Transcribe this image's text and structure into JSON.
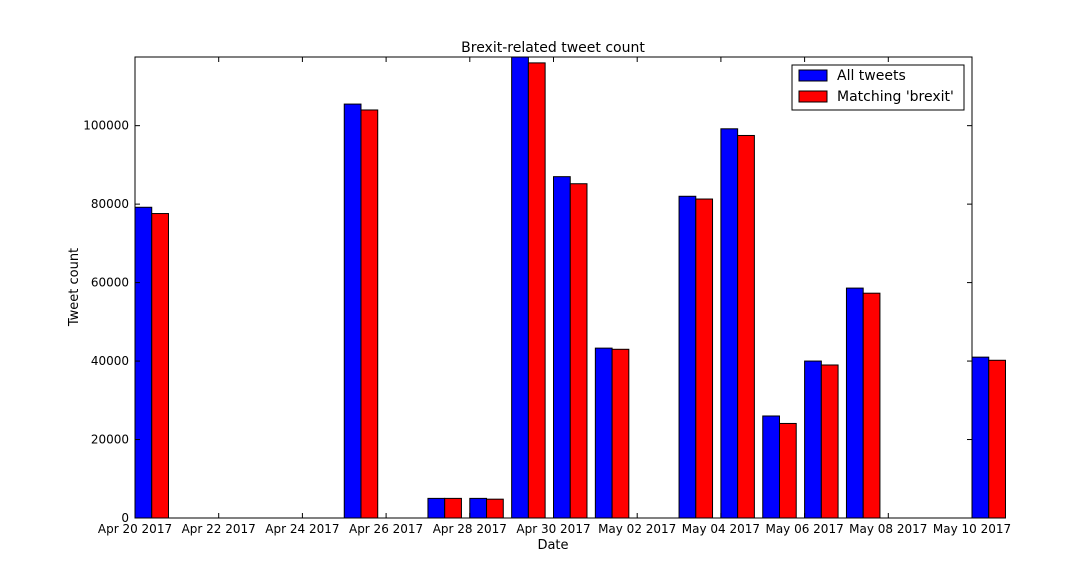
{
  "chart_data": {
    "type": "bar",
    "title": "Brexit-related tweet count",
    "xlabel": "Date",
    "ylabel": "Tweet count",
    "ylim": [
      0,
      117500
    ],
    "yticks": [
      0,
      20000,
      40000,
      60000,
      80000,
      100000
    ],
    "ytick_labels": [
      "0",
      "20000",
      "40000",
      "60000",
      "80000",
      "100000"
    ],
    "xlim": [
      "Apr 20 2017",
      "May 10 2017"
    ],
    "xtick_labels": [
      "Apr 20 2017",
      "Apr 22 2017",
      "Apr 24 2017",
      "Apr 26 2017",
      "Apr 28 2017",
      "Apr 30 2017",
      "May 02 2017",
      "May 04 2017",
      "May 06 2017",
      "May 08 2017",
      "May 10 2017"
    ],
    "categories": [
      "Apr 20 2017",
      "Apr 25 2017",
      "Apr 27 2017",
      "Apr 28 2017",
      "Apr 29 2017",
      "Apr 30 2017",
      "May 01 2017",
      "May 03 2017",
      "May 04 2017",
      "May 05 2017",
      "May 06 2017",
      "May 07 2017",
      "May 10 2017"
    ],
    "series": [
      {
        "name": "All tweets",
        "color": "#0000ff",
        "values": [
          79200,
          105500,
          5000,
          5000,
          117500,
          87000,
          43300,
          82000,
          99200,
          26000,
          40000,
          58600,
          41000
        ]
      },
      {
        "name": "Matching 'brexit'",
        "color": "#ff0000",
        "values": [
          77600,
          104000,
          5000,
          4800,
          116000,
          85200,
          43000,
          81300,
          97500,
          24100,
          39000,
          57300,
          40200
        ]
      }
    ],
    "legend_position": "top-right",
    "grid": false
  }
}
